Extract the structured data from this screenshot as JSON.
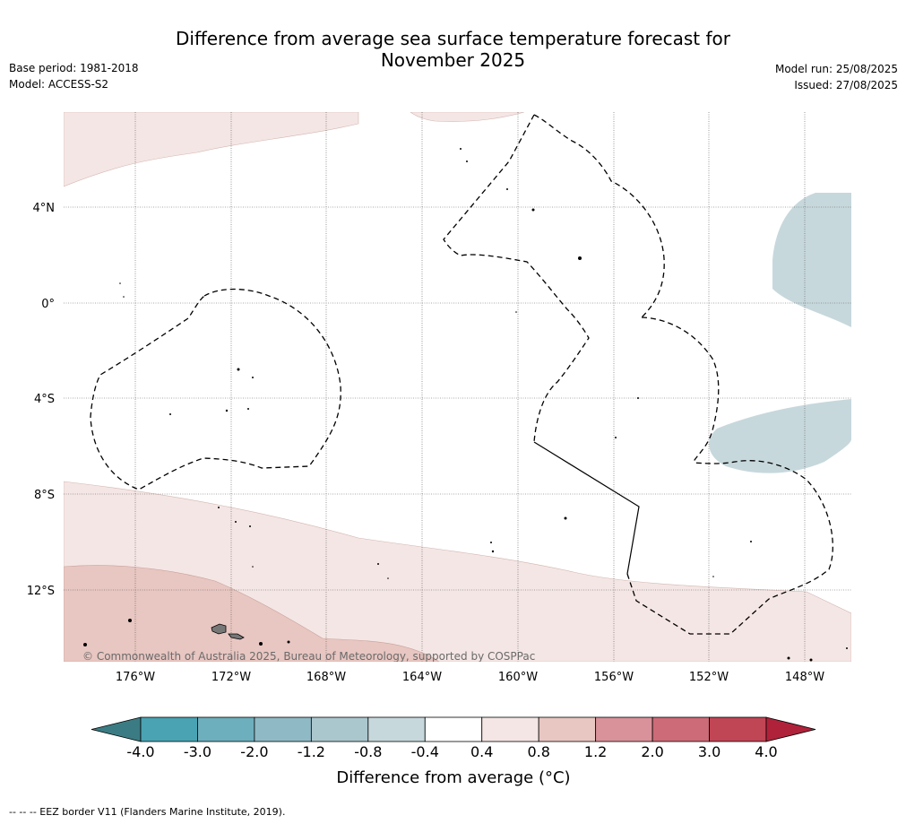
{
  "title_line1": "Difference from average sea surface temperature forecast for",
  "title_line2": "November 2025",
  "base_period": "Base period: 1981-2018",
  "model": "Model: ACCESS-S2",
  "model_run": "Model run: 25/08/2025",
  "issued": "Issued: 27/08/2025",
  "copyright": "© Commonwealth of Australia 2025, Bureau of Meteorology, supported by COSPPac",
  "lat_labels": [
    "4°N",
    "0°",
    "4°S",
    "8°S",
    "12°S"
  ],
  "lon_labels": [
    "176°W",
    "172°W",
    "168°W",
    "164°W",
    "160°W",
    "156°W",
    "152°W",
    "148°W"
  ],
  "colorbar": {
    "label": "Difference from average (°C)",
    "ticks": [
      "-4.0",
      "-3.0",
      "-2.0",
      "-1.2",
      "-0.8",
      "-0.4",
      "0.4",
      "0.8",
      "1.2",
      "2.0",
      "3.0",
      "4.0"
    ],
    "colors": [
      "#4aa3b2",
      "#6eafbd",
      "#8fbac5",
      "#abc7ce",
      "#c7d8dc",
      "#ffffff",
      "#f4e6e4",
      "#e8c6c1",
      "#d9929a",
      "#cd6b78",
      "#c04555"
    ],
    "under_color": "#3b7c84",
    "over_color": "#b0223a"
  },
  "footer": "--  --  -- EEZ border V11 (Flanders Marine Institute, 2019)."
}
